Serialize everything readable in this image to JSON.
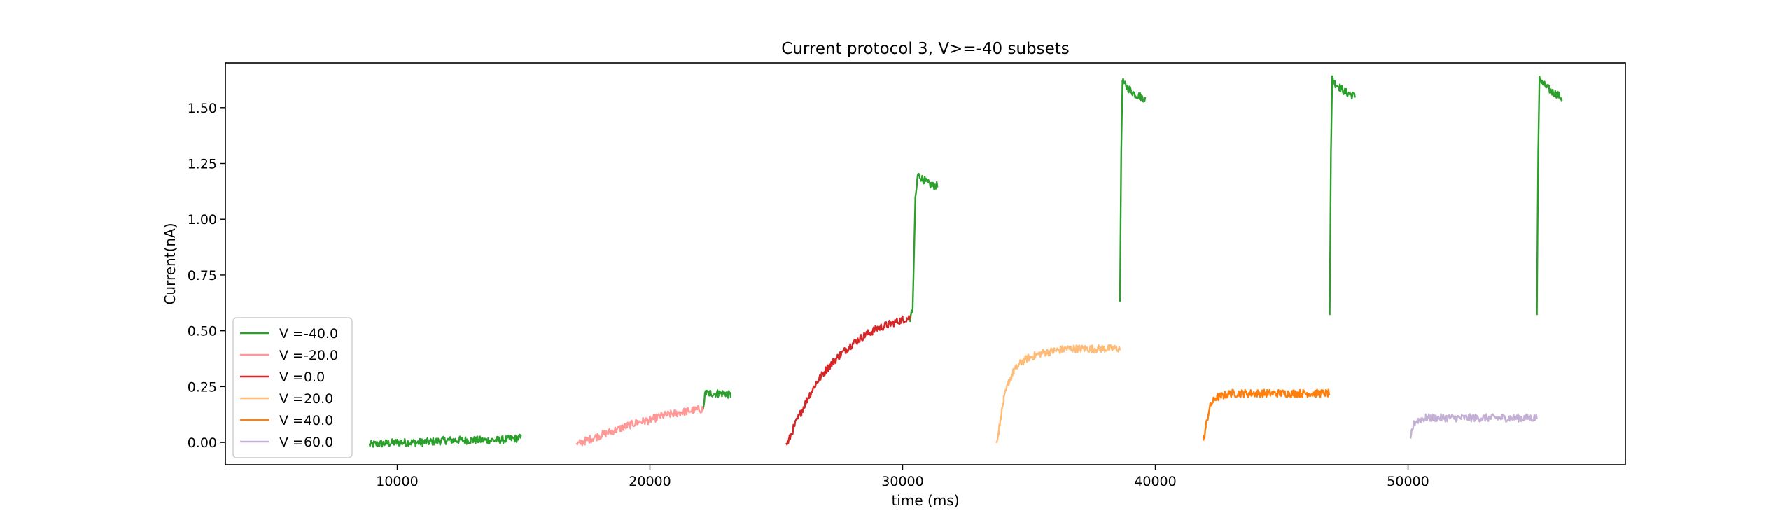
{
  "chart_data": {
    "type": "line",
    "title": "Current protocol 3, V>=-40 subsets",
    "xlabel": "time (ms)",
    "ylabel": "Current(nA)",
    "xlim": [
      3200,
      58600
    ],
    "ylim": [
      -0.1,
      1.7
    ],
    "x_ticks": [
      10000,
      20000,
      30000,
      40000,
      50000
    ],
    "x_tick_labels": [
      "10000",
      "20000",
      "30000",
      "40000",
      "50000"
    ],
    "y_ticks": [
      0.0,
      0.25,
      0.5,
      0.75,
      1.0,
      1.25,
      1.5
    ],
    "y_tick_labels": [
      "0.00",
      "0.25",
      "0.50",
      "0.75",
      "1.00",
      "1.25",
      "1.50"
    ],
    "grid": false,
    "legend_position": "lower-left",
    "series": [
      {
        "name": "V =-40.0",
        "color": "#2ca02c",
        "segments": [
          {
            "x": [
              8900,
              10000,
              11000,
              12000,
              13000,
              14000,
              14900
            ],
            "y": [
              -0.01,
              0.0,
              0.0,
              0.01,
              0.01,
              0.01,
              0.02
            ]
          },
          {
            "x": [
              22100,
              22200,
              22400,
              22700,
              23000,
              23200
            ],
            "y": [
              0.16,
              0.22,
              0.22,
              0.22,
              0.22,
              0.21
            ]
          },
          {
            "x": [
              30300,
              30400,
              30500,
              30600,
              30800,
              31000,
              31200,
              31400
            ],
            "y": [
              0.55,
              0.6,
              1.08,
              1.2,
              1.18,
              1.16,
              1.15,
              1.15
            ]
          },
          {
            "x": [
              38600,
              38650,
              38700,
              38800,
              39000,
              39200,
              39400,
              39600
            ],
            "y": [
              0.63,
              1.3,
              1.62,
              1.6,
              1.58,
              1.56,
              1.55,
              1.54
            ]
          },
          {
            "x": [
              46900,
              46950,
              47000,
              47100,
              47300,
              47500,
              47700,
              47900
            ],
            "y": [
              0.57,
              1.3,
              1.63,
              1.61,
              1.59,
              1.57,
              1.56,
              1.55
            ]
          },
          {
            "x": [
              55100,
              55150,
              55200,
              55300,
              55500,
              55700,
              55900,
              56100
            ],
            "y": [
              0.57,
              1.3,
              1.64,
              1.61,
              1.59,
              1.57,
              1.56,
              1.54
            ]
          }
        ]
      },
      {
        "name": "V =-20.0",
        "color": "#ff9896",
        "segments": [
          {
            "x": [
              17100,
              17500,
              18000,
              18500,
              19000,
              19500,
              20000,
              20500,
              21000,
              21500,
              22100
            ],
            "y": [
              -0.01,
              0.01,
              0.03,
              0.05,
              0.07,
              0.09,
              0.1,
              0.12,
              0.13,
              0.14,
              0.15
            ]
          }
        ]
      },
      {
        "name": "V =0.0",
        "color": "#d62728",
        "segments": [
          {
            "x": [
              25400,
              25500,
              25700,
              26000,
              26300,
              26600,
              27000,
              27500,
              28000,
              28500,
              29000,
              29500,
              30000,
              30300
            ],
            "y": [
              -0.01,
              0.01,
              0.07,
              0.14,
              0.21,
              0.27,
              0.33,
              0.39,
              0.44,
              0.48,
              0.51,
              0.53,
              0.55,
              0.56
            ]
          }
        ]
      },
      {
        "name": "V =20.0",
        "color": "#ffbb78",
        "segments": [
          {
            "x": [
              33700,
              33800,
              33900,
              34000,
              34200,
              34400,
              34700,
              35000,
              35500,
              36000,
              36500,
              37000,
              37500,
              38000,
              38600
            ],
            "y": [
              0.0,
              0.05,
              0.12,
              0.19,
              0.27,
              0.32,
              0.36,
              0.38,
              0.4,
              0.41,
              0.42,
              0.42,
              0.42,
              0.42,
              0.42
            ]
          }
        ]
      },
      {
        "name": "V =40.0",
        "color": "#ff7f0e",
        "segments": [
          {
            "x": [
              41900,
              42000,
              42100,
              42200,
              42400,
              42700,
              43000,
              43500,
              44000,
              44500,
              45000,
              45500,
              46000,
              46500,
              46900
            ],
            "y": [
              0.0,
              0.07,
              0.13,
              0.17,
              0.2,
              0.21,
              0.22,
              0.22,
              0.22,
              0.22,
              0.22,
              0.22,
              0.22,
              0.22,
              0.22
            ]
          }
        ]
      },
      {
        "name": "V =60.0",
        "color": "#c5b0d5",
        "segments": [
          {
            "x": [
              50100,
              50150,
              50250,
              50400,
              50700,
              51000,
              51500,
              52000,
              52500,
              53000,
              53500,
              54000,
              54500,
              55100
            ],
            "y": [
              0.0,
              0.05,
              0.09,
              0.1,
              0.11,
              0.11,
              0.11,
              0.11,
              0.11,
              0.11,
              0.11,
              0.11,
              0.11,
              0.11
            ]
          }
        ]
      }
    ]
  }
}
